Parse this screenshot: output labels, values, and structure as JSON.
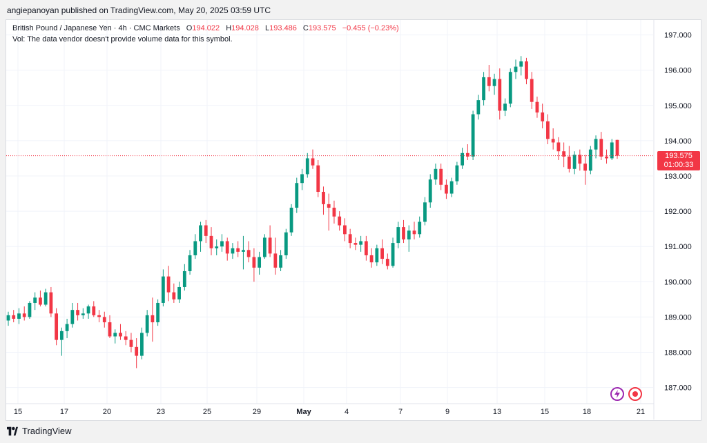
{
  "publisher_line": "angiepanoyan published on TradingView.com, May 20, 2025 03:59 UTC",
  "legend": {
    "symbol": "British Pound / Japanese Yen · 4h · CMC Markets",
    "o_label": "O",
    "o": "194.022",
    "h_label": "H",
    "h": "194.028",
    "l_label": "L",
    "l": "193.486",
    "c_label": "C",
    "c": "193.575",
    "change": "−0.455 (−0.23%)",
    "vol_note": "Vol: The data vendor doesn't provide volume data for this symbol."
  },
  "price_tag": {
    "price": "193.575",
    "countdown": "01:00:33"
  },
  "brand": "TradingView",
  "colors": {
    "up": "#089981",
    "down": "#f23645",
    "grid": "#f0f3fa",
    "axis_text": "#131722"
  },
  "chart_data": {
    "type": "candlestick",
    "title": "British Pound / Japanese Yen · 4h · CMC Markets",
    "ylim": [
      186.7,
      197.5
    ],
    "y_ticks": [
      "187.000",
      "188.000",
      "189.000",
      "190.000",
      "191.000",
      "192.000",
      "193.000",
      "194.000",
      "195.000",
      "196.000",
      "197.000"
    ],
    "x_ticks": [
      "15",
      "17",
      "20",
      "23",
      "25",
      "29",
      "May",
      "4",
      "7",
      "9",
      "13",
      "15",
      "18",
      "21"
    ],
    "last_price": 193.575,
    "candles": [
      [
        188.9,
        189.15,
        188.75,
        189.05
      ],
      [
        189.05,
        189.2,
        188.85,
        188.95
      ],
      [
        188.95,
        189.25,
        188.8,
        189.1
      ],
      [
        189.1,
        189.3,
        188.9,
        189.0
      ],
      [
        189.0,
        189.45,
        188.95,
        189.4
      ],
      [
        189.4,
        189.7,
        189.2,
        189.55
      ],
      [
        189.55,
        189.75,
        189.3,
        189.35
      ],
      [
        189.35,
        189.8,
        189.3,
        189.7
      ],
      [
        189.7,
        189.85,
        189.0,
        189.1
      ],
      [
        189.1,
        189.25,
        188.2,
        188.35
      ],
      [
        188.35,
        188.7,
        187.9,
        188.6
      ],
      [
        188.6,
        188.95,
        188.4,
        188.8
      ],
      [
        188.8,
        189.4,
        188.7,
        189.2
      ],
      [
        189.2,
        189.4,
        188.9,
        189.05
      ],
      [
        189.05,
        189.25,
        188.95,
        189.1
      ],
      [
        189.1,
        189.35,
        188.95,
        189.3
      ],
      [
        189.3,
        189.45,
        189.0,
        189.05
      ],
      [
        189.05,
        189.2,
        188.85,
        189.0
      ],
      [
        189.0,
        189.15,
        188.7,
        188.85
      ],
      [
        188.85,
        189.05,
        188.4,
        188.45
      ],
      [
        188.45,
        188.65,
        188.25,
        188.55
      ],
      [
        188.55,
        188.8,
        188.35,
        188.45
      ],
      [
        188.45,
        188.6,
        188.2,
        188.35
      ],
      [
        188.35,
        188.55,
        188.0,
        188.15
      ],
      [
        188.15,
        188.4,
        187.55,
        187.9
      ],
      [
        187.9,
        188.7,
        187.8,
        188.55
      ],
      [
        188.55,
        189.2,
        188.45,
        189.05
      ],
      [
        189.05,
        189.55,
        188.3,
        188.85
      ],
      [
        188.85,
        189.5,
        188.75,
        189.4
      ],
      [
        189.4,
        190.35,
        189.3,
        190.15
      ],
      [
        190.15,
        190.45,
        189.45,
        189.7
      ],
      [
        189.7,
        189.95,
        189.4,
        189.5
      ],
      [
        189.5,
        190.0,
        189.4,
        189.85
      ],
      [
        189.85,
        190.5,
        189.75,
        190.3
      ],
      [
        190.3,
        190.9,
        190.2,
        190.75
      ],
      [
        190.75,
        191.35,
        190.65,
        191.15
      ],
      [
        191.15,
        191.7,
        190.85,
        191.6
      ],
      [
        191.6,
        191.75,
        191.1,
        191.3
      ],
      [
        191.3,
        191.55,
        190.75,
        190.95
      ],
      [
        190.95,
        191.2,
        190.75,
        191.0
      ],
      [
        191.0,
        191.35,
        190.85,
        191.15
      ],
      [
        191.15,
        191.25,
        190.6,
        190.8
      ],
      [
        190.8,
        191.1,
        190.65,
        190.95
      ],
      [
        190.95,
        191.15,
        190.7,
        190.85
      ],
      [
        190.85,
        191.3,
        190.35,
        190.9
      ],
      [
        190.9,
        191.15,
        190.55,
        190.7
      ],
      [
        190.7,
        190.95,
        190.0,
        190.4
      ],
      [
        190.4,
        190.85,
        190.2,
        190.7
      ],
      [
        190.7,
        191.35,
        190.65,
        191.25
      ],
      [
        191.25,
        191.6,
        190.7,
        190.8
      ],
      [
        190.8,
        191.25,
        190.2,
        190.4
      ],
      [
        190.4,
        190.9,
        190.3,
        190.75
      ],
      [
        190.75,
        191.5,
        190.65,
        191.4
      ],
      [
        191.4,
        192.2,
        191.3,
        192.1
      ],
      [
        192.1,
        192.95,
        191.95,
        192.8
      ],
      [
        192.8,
        193.2,
        192.6,
        193.05
      ],
      [
        193.05,
        193.65,
        192.95,
        193.5
      ],
      [
        193.5,
        193.75,
        193.2,
        193.3
      ],
      [
        193.3,
        193.45,
        192.4,
        192.55
      ],
      [
        192.55,
        192.7,
        191.9,
        192.2
      ],
      [
        192.2,
        192.5,
        191.45,
        192.1
      ],
      [
        192.1,
        192.3,
        191.65,
        191.85
      ],
      [
        191.85,
        192.0,
        191.45,
        191.6
      ],
      [
        191.6,
        191.8,
        191.15,
        191.35
      ],
      [
        191.35,
        191.5,
        190.95,
        191.1
      ],
      [
        191.1,
        191.25,
        190.9,
        191.05
      ],
      [
        191.05,
        191.3,
        190.85,
        191.15
      ],
      [
        191.15,
        191.3,
        190.6,
        190.75
      ],
      [
        190.75,
        190.95,
        190.4,
        190.55
      ],
      [
        190.55,
        191.05,
        190.45,
        190.95
      ],
      [
        190.95,
        191.2,
        190.5,
        190.65
      ],
      [
        190.65,
        190.8,
        190.35,
        190.45
      ],
      [
        190.45,
        191.25,
        190.4,
        191.1
      ],
      [
        191.1,
        191.7,
        190.95,
        191.55
      ],
      [
        191.55,
        191.75,
        191.1,
        191.2
      ],
      [
        191.2,
        191.6,
        190.85,
        191.45
      ],
      [
        191.45,
        191.7,
        191.2,
        191.35
      ],
      [
        191.35,
        191.85,
        191.25,
        191.7
      ],
      [
        191.7,
        192.4,
        191.6,
        192.25
      ],
      [
        192.25,
        193.05,
        192.1,
        192.9
      ],
      [
        192.9,
        193.35,
        192.75,
        193.2
      ],
      [
        193.2,
        193.35,
        192.6,
        192.75
      ],
      [
        192.75,
        192.9,
        192.35,
        192.5
      ],
      [
        192.5,
        192.95,
        192.4,
        192.85
      ],
      [
        192.85,
        193.4,
        192.75,
        193.3
      ],
      [
        193.3,
        193.8,
        193.2,
        193.65
      ],
      [
        193.65,
        193.9,
        193.45,
        193.55
      ],
      [
        193.55,
        194.85,
        193.45,
        194.75
      ],
      [
        194.75,
        195.3,
        194.6,
        195.15
      ],
      [
        195.15,
        195.95,
        195.0,
        195.8
      ],
      [
        195.8,
        196.15,
        195.4,
        195.55
      ],
      [
        195.55,
        195.9,
        195.3,
        195.75
      ],
      [
        195.75,
        196.05,
        194.6,
        194.85
      ],
      [
        194.85,
        195.2,
        194.7,
        195.05
      ],
      [
        195.05,
        196.05,
        194.95,
        195.95
      ],
      [
        195.95,
        196.3,
        195.75,
        196.1
      ],
      [
        196.1,
        196.4,
        195.85,
        196.25
      ],
      [
        196.25,
        196.35,
        195.6,
        195.75
      ],
      [
        195.75,
        195.95,
        194.9,
        195.1
      ],
      [
        195.1,
        195.25,
        194.65,
        194.8
      ],
      [
        194.8,
        195.05,
        194.35,
        194.55
      ],
      [
        194.55,
        194.75,
        193.9,
        194.05
      ],
      [
        194.05,
        194.35,
        193.75,
        193.95
      ],
      [
        193.95,
        194.1,
        193.45,
        193.7
      ],
      [
        193.7,
        193.95,
        193.25,
        193.55
      ],
      [
        193.55,
        193.85,
        193.1,
        193.2
      ],
      [
        193.2,
        193.7,
        193.05,
        193.6
      ],
      [
        193.6,
        193.75,
        193.15,
        193.35
      ],
      [
        193.35,
        193.6,
        192.75,
        193.15
      ],
      [
        193.15,
        193.85,
        193.05,
        193.75
      ],
      [
        193.75,
        194.15,
        193.5,
        194.05
      ],
      [
        194.05,
        194.25,
        193.45,
        193.55
      ],
      [
        193.55,
        193.75,
        193.35,
        193.5
      ],
      [
        193.5,
        194.05,
        193.45,
        193.95
      ],
      [
        194.022,
        194.028,
        193.486,
        193.575
      ]
    ]
  }
}
